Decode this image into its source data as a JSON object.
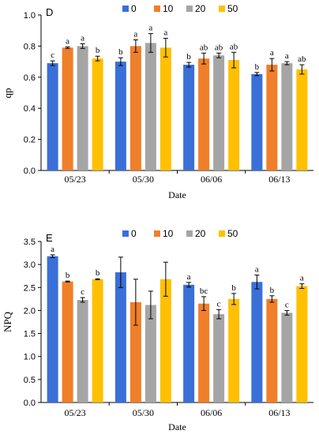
{
  "chart_data": [
    {
      "type": "bar",
      "panel_label": "D",
      "ylabel": "qp",
      "xlabel": "Date",
      "ylim": [
        0,
        1.0
      ],
      "yticks": [
        "0.0",
        "0.2",
        "0.4",
        "0.6",
        "0.8",
        "1.0"
      ],
      "categories": [
        "05/23",
        "05/30",
        "06/06",
        "06/13"
      ],
      "legend_position": "top",
      "series": [
        {
          "name": "0",
          "color": "#3a6fd8",
          "values": [
            0.69,
            0.7,
            0.68,
            0.62
          ],
          "errors": [
            0.015,
            0.025,
            0.015,
            0.01
          ],
          "letters": [
            "c",
            "b",
            "b",
            "b"
          ]
        },
        {
          "name": "10",
          "color": "#f07f2a",
          "values": [
            0.79,
            0.8,
            0.72,
            0.68
          ],
          "errors": [
            0.005,
            0.04,
            0.035,
            0.04
          ],
          "letters": [
            "a",
            "a",
            "ab",
            "a"
          ]
        },
        {
          "name": "20",
          "color": "#a5a5a5",
          "values": [
            0.8,
            0.82,
            0.74,
            0.69
          ],
          "errors": [
            0.015,
            0.06,
            0.015,
            0.01
          ],
          "letters": [
            "a",
            "a",
            "ab",
            "a"
          ]
        },
        {
          "name": "50",
          "color": "#ffc000",
          "values": [
            0.72,
            0.79,
            0.71,
            0.65
          ],
          "errors": [
            0.015,
            0.06,
            0.05,
            0.03
          ],
          "letters": [
            "b",
            "a",
            "ab",
            "ab"
          ]
        }
      ]
    },
    {
      "type": "bar",
      "panel_label": "E",
      "ylabel": "NPQ",
      "xlabel": "Date",
      "ylim": [
        0,
        3.5
      ],
      "yticks": [
        "0.0",
        "0.5",
        "1.0",
        "1.5",
        "2.0",
        "2.5",
        "3.0",
        "3.5"
      ],
      "categories": [
        "05/23",
        "05/30",
        "06/06",
        "06/13"
      ],
      "legend_position": "top",
      "series": [
        {
          "name": "0",
          "color": "#3a6fd8",
          "values": [
            3.18,
            2.83,
            2.56,
            2.62
          ],
          "errors": [
            0.03,
            0.33,
            0.05,
            0.15
          ],
          "letters": [
            "a",
            "",
            "a",
            "a"
          ]
        },
        {
          "name": "10",
          "color": "#f07f2a",
          "values": [
            2.63,
            2.18,
            2.15,
            2.25
          ],
          "errors": [
            0.01,
            0.5,
            0.15,
            0.07
          ],
          "letters": [
            "b",
            "",
            "bc",
            "b"
          ]
        },
        {
          "name": "20",
          "color": "#a5a5a5",
          "values": [
            2.23,
            2.12,
            1.92,
            1.95
          ],
          "errors": [
            0.05,
            0.3,
            0.1,
            0.05
          ],
          "letters": [
            "c",
            "",
            "c",
            "c"
          ]
        },
        {
          "name": "50",
          "color": "#ffc000",
          "values": [
            2.68,
            2.68,
            2.25,
            2.53
          ],
          "errors": [
            0.01,
            0.37,
            0.12,
            0.05
          ],
          "letters": [
            "b",
            "",
            "b",
            "a"
          ]
        }
      ]
    }
  ]
}
